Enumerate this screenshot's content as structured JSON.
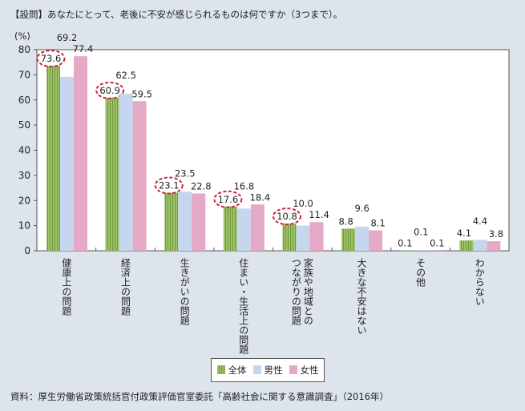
{
  "question": "【設問】あなたにとって、老後に不安が感じられるものは何ですか（3つまで）。",
  "source": "資料：厚生労働省政策統括官付政策評価官室委託「高齢社会に関する意識調査」（2016年）",
  "chart_data": {
    "type": "bar",
    "ylabel": "(%)",
    "ylim": [
      0,
      80
    ],
    "yticks": [
      0,
      10,
      20,
      30,
      40,
      50,
      60,
      70,
      80
    ],
    "categories": [
      "健康上の問題",
      "経済上の問題",
      "生きがいの問題",
      "住まい・生活上の問題",
      "家族や地域との\nつながりの問題",
      "大きな不安はない",
      "その他",
      "わからない"
    ],
    "series": [
      {
        "name": "全体",
        "color": "#9dc06a",
        "values": [
          73.6,
          60.9,
          23.1,
          17.6,
          10.8,
          8.8,
          0.1,
          4.1
        ],
        "highlighted": [
          true,
          true,
          true,
          true,
          true,
          false,
          false,
          false
        ]
      },
      {
        "name": "男性",
        "color": "#c6d6ee",
        "values": [
          69.2,
          62.5,
          23.5,
          16.8,
          10.0,
          9.6,
          0.1,
          4.4
        ]
      },
      {
        "name": "女性",
        "color": "#e4a9c6",
        "values": [
          77.4,
          59.5,
          22.8,
          18.4,
          11.4,
          8.1,
          0.1,
          3.8
        ]
      }
    ],
    "highlight_color": "#d0243a",
    "legend": "bottom"
  }
}
